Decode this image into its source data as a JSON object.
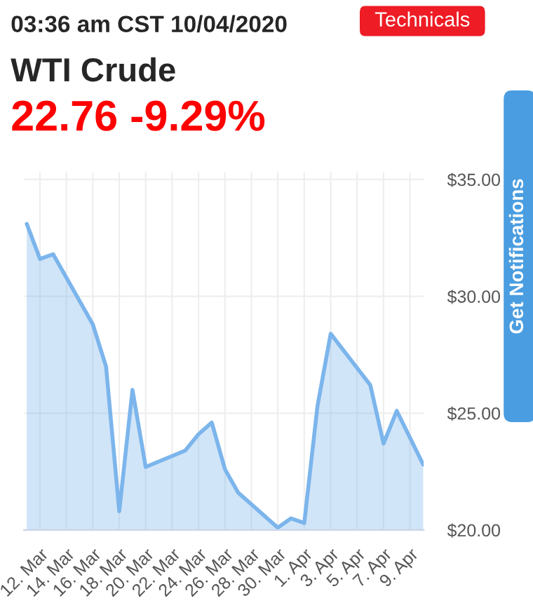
{
  "chart_data": {
    "type": "area",
    "title": "WTI Crude",
    "subtitle": "03:36 am CST 10/04/2020",
    "annotations": [
      "22.76 -9.29%",
      "Technicals",
      "Get Notifications"
    ],
    "x": [
      "2020-03-11",
      "2020-03-12",
      "2020-03-13",
      "2020-03-16",
      "2020-03-17",
      "2020-03-18",
      "2020-03-19",
      "2020-03-20",
      "2020-03-23",
      "2020-03-24",
      "2020-03-25",
      "2020-03-26",
      "2020-03-27",
      "2020-03-30",
      "2020-03-31",
      "2020-04-01",
      "2020-04-02",
      "2020-04-03",
      "2020-04-06",
      "2020-04-07",
      "2020-04-08",
      "2020-04-10"
    ],
    "series": [
      {
        "color": "#7cb5ec",
        "values": [
          33.1,
          31.6,
          31.8,
          28.8,
          27.0,
          20.8,
          26.0,
          22.7,
          23.4,
          24.1,
          24.6,
          22.6,
          21.6,
          20.1,
          20.5,
          20.3,
          25.3,
          28.4,
          26.2,
          23.7,
          25.1,
          22.8
        ]
      }
    ],
    "xlim": [
      "2020-03-10T19:00",
      "2020-04-10T01:00"
    ],
    "xticks": [
      {
        "value": "2020-03-12",
        "label": "12. Mar"
      },
      {
        "value": "2020-03-14",
        "label": "14. Mar"
      },
      {
        "value": "2020-03-16",
        "label": "16. Mar"
      },
      {
        "value": "2020-03-18",
        "label": "18. Mar"
      },
      {
        "value": "2020-03-20",
        "label": "20. Mar"
      },
      {
        "value": "2020-03-22",
        "label": "22. Mar"
      },
      {
        "value": "2020-03-24",
        "label": "24. Mar"
      },
      {
        "value": "2020-03-26",
        "label": "26. Mar"
      },
      {
        "value": "2020-03-28",
        "label": "28. Mar"
      },
      {
        "value": "2020-03-30",
        "label": "30. Mar"
      },
      {
        "value": "2020-04-01",
        "label": "1. Apr"
      },
      {
        "value": "2020-04-03",
        "label": "3. Apr"
      },
      {
        "value": "2020-04-05",
        "label": "5. Apr"
      },
      {
        "value": "2020-04-07",
        "label": "7. Apr"
      },
      {
        "value": "2020-04-09",
        "label": "9. Apr"
      }
    ],
    "ylim": [
      20,
      35.3
    ],
    "yticks": [
      {
        "value": 20,
        "label": "$20.00"
      },
      {
        "value": 25,
        "label": "$25.00"
      },
      {
        "value": 30,
        "label": "$30.00"
      },
      {
        "value": 35,
        "label": "$35.00"
      }
    ],
    "grid": true,
    "legend": false,
    "marker": "none",
    "line_style": "solid"
  }
}
